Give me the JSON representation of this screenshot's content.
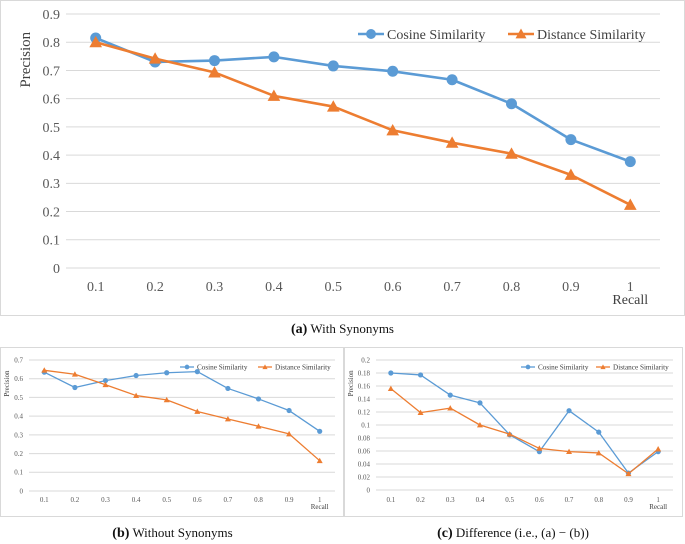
{
  "colors": {
    "cosine": "#5B9BD5",
    "distance": "#ED7D31"
  },
  "chart_data": [
    {
      "id": "a",
      "type": "line",
      "caption_letter": "(a)",
      "caption_text": "With Synonyms",
      "xlabel": "Recall",
      "ylabel": "Precision",
      "categories": [
        "0.1",
        "0.2",
        "0.3",
        "0.4",
        "0.5",
        "0.6",
        "0.7",
        "0.8",
        "0.9",
        "1"
      ],
      "yticks": [
        "0",
        "0.1",
        "0.2",
        "0.3",
        "0.4",
        "0.5",
        "0.6",
        "0.7",
        "0.8",
        "0.9"
      ],
      "ylim": [
        0,
        0.9
      ],
      "legend_position": "top-right",
      "series": [
        {
          "name": "Cosine Similarity",
          "marker": "circle",
          "values": [
            0.815,
            0.73,
            0.735,
            0.748,
            0.716,
            0.697,
            0.667,
            0.582,
            0.455,
            0.377
          ]
        },
        {
          "name": "Distance Similarity",
          "marker": "triangle",
          "values": [
            0.8,
            0.742,
            0.693,
            0.61,
            0.572,
            0.488,
            0.444,
            0.405,
            0.33,
            0.224
          ]
        }
      ]
    },
    {
      "id": "b",
      "type": "line",
      "caption_letter": "(b)",
      "caption_text": "Without Synonyms",
      "xlabel": "Recall",
      "ylabel": "Precision",
      "categories": [
        "0.1",
        "0.2",
        "0.3",
        "0.4",
        "0.5",
        "0.6",
        "0.7",
        "0.8",
        "0.9",
        "1"
      ],
      "yticks": [
        "0",
        "0.1",
        "0.2",
        "0.3",
        "0.4",
        "0.5",
        "0.6",
        "0.7"
      ],
      "ylim": [
        0,
        0.7
      ],
      "legend_position": "top-right",
      "series": [
        {
          "name": "Cosine Similarity",
          "marker": "circle",
          "values": [
            0.635,
            0.553,
            0.59,
            0.617,
            0.632,
            0.638,
            0.548,
            0.492,
            0.43,
            0.319
          ]
        },
        {
          "name": "Distance Similarity",
          "marker": "triangle",
          "values": [
            0.645,
            0.624,
            0.568,
            0.51,
            0.487,
            0.425,
            0.385,
            0.346,
            0.305,
            0.162
          ]
        }
      ]
    },
    {
      "id": "c",
      "type": "line",
      "caption_letter": "(c)",
      "caption_text": "Difference (i.e., (a) − (b))",
      "xlabel": "Recall",
      "ylabel": "Precision",
      "categories": [
        "0.1",
        "0.2",
        "0.3",
        "0.4",
        "0.5",
        "0.6",
        "0.7",
        "0.8",
        "0.9",
        "1"
      ],
      "yticks": [
        "0",
        "0.02",
        "0.04",
        "0.06",
        "0.08",
        "0.1",
        "0.12",
        "0.14",
        "0.16",
        "0.18",
        "0.2"
      ],
      "ylim": [
        0,
        0.2
      ],
      "legend_position": "top-right",
      "series": [
        {
          "name": "Cosine Similarity",
          "marker": "circle",
          "values": [
            0.18,
            0.177,
            0.146,
            0.134,
            0.085,
            0.059,
            0.122,
            0.089,
            0.026,
            0.059
          ]
        },
        {
          "name": "Distance Similarity",
          "marker": "triangle",
          "values": [
            0.156,
            0.119,
            0.126,
            0.1,
            0.086,
            0.064,
            0.059,
            0.057,
            0.025,
            0.063
          ]
        }
      ]
    }
  ]
}
